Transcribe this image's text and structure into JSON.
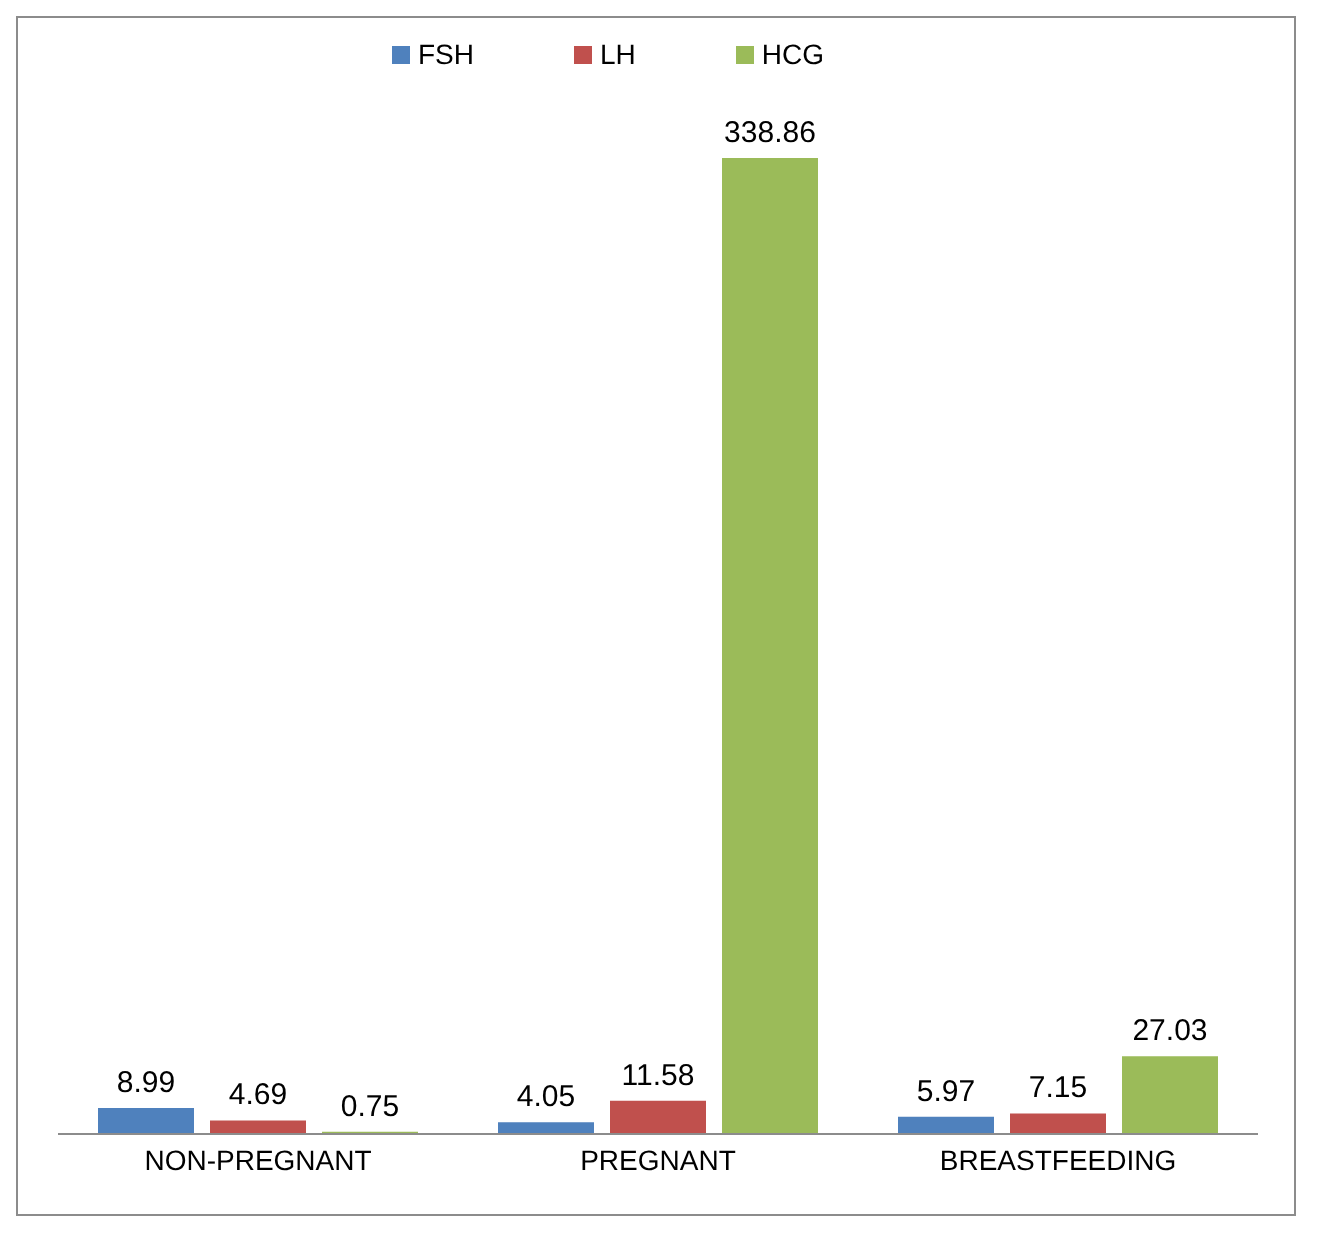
{
  "chart_data": {
    "type": "bar",
    "categories": [
      "NON-PREGNANT",
      "PREGNANT",
      "BREASTFEEDING"
    ],
    "series": [
      {
        "name": "FSH",
        "color": "#4f81bd",
        "values": [
          8.99,
          4.05,
          5.97
        ]
      },
      {
        "name": "LH",
        "color": "#c0504d",
        "values": [
          4.69,
          11.58,
          7.15
        ]
      },
      {
        "name": "HCG",
        "color": "#9bbb59",
        "values": [
          0.75,
          338.86,
          27.03
        ]
      }
    ],
    "data_labels": true,
    "legend": "top",
    "grid": false
  }
}
